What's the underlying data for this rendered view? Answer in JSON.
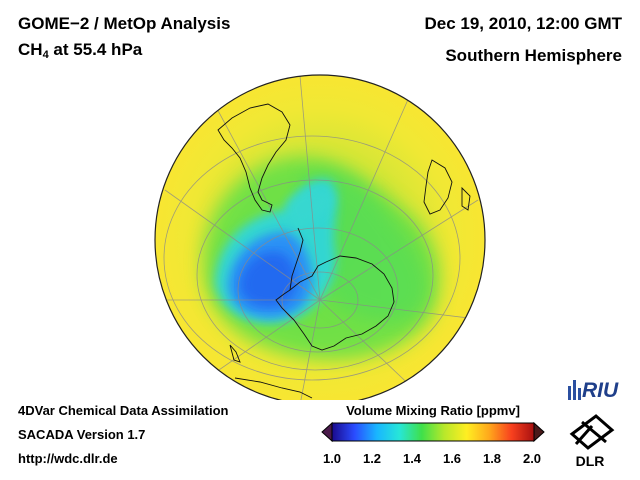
{
  "header": {
    "product": "GOME−2 / MetOp Analysis",
    "species": "CH",
    "species_sub": "4",
    "level": " at 55.4 hPa",
    "datetime": "Dec 19, 2010, 12:00 GMT",
    "hemisphere": "Southern Hemisphere"
  },
  "footer": {
    "line1": "4DVar Chemical Data Assimilation",
    "line2": "SACADA Version 1.7",
    "line3": "http://wdc.dlr.de"
  },
  "colorbar": {
    "title": "Volume Mixing Ratio [ppmv]",
    "ticks": [
      "1.0",
      "1.2",
      "1.4",
      "1.6",
      "1.8",
      "2.0"
    ],
    "colors": [
      "#1a0a8c",
      "#2a4cff",
      "#19b6ff",
      "#27e6d8",
      "#3fe04a",
      "#b8e82a",
      "#ffee22",
      "#ffa81c",
      "#f8401e",
      "#a81010"
    ]
  },
  "logos": {
    "riu": "RIU",
    "dlr": "DLR"
  }
}
